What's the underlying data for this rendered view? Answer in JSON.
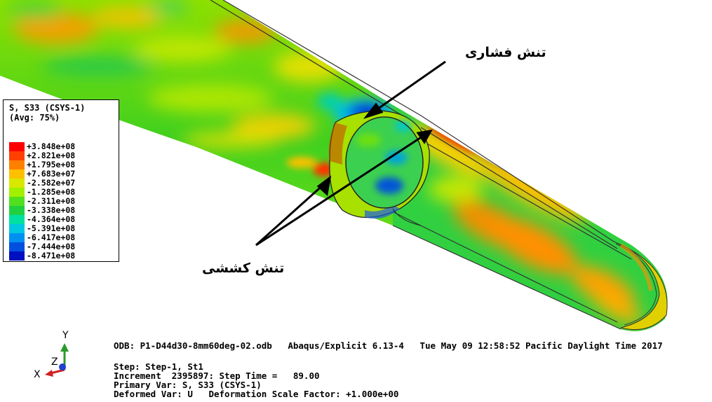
{
  "legend": {
    "title_line1": "S, S33 (CSYS-1)",
    "title_line2": "(Avg: 75%)",
    "items": [
      {
        "value": "+3.848e+08",
        "color": "#ff0000"
      },
      {
        "value": "+2.821e+08",
        "color": "#ff4000"
      },
      {
        "value": "+1.795e+08",
        "color": "#ff8000"
      },
      {
        "value": "+7.683e+07",
        "color": "#ffc000"
      },
      {
        "value": "-2.582e+07",
        "color": "#d8e800"
      },
      {
        "value": "-1.285e+08",
        "color": "#a0f000"
      },
      {
        "value": "-2.311e+08",
        "color": "#50e020"
      },
      {
        "value": "-3.338e+08",
        "color": "#20d040"
      },
      {
        "value": "-4.364e+08",
        "color": "#00e0a0"
      },
      {
        "value": "-5.391e+08",
        "color": "#00c8e0"
      },
      {
        "value": "-6.417e+08",
        "color": "#0090f0"
      },
      {
        "value": "-7.444e+08",
        "color": "#0050e0"
      },
      {
        "value": "-8.471e+08",
        "color": "#0010c0"
      }
    ]
  },
  "annotations": {
    "compressive": "تنش فشاری",
    "tensile": "تنش کششی"
  },
  "triad": {
    "y": "Y",
    "z": "Z",
    "x": "X"
  },
  "info": {
    "odb_line": "ODB: P1-D44d30-8mm60deg-02.odb   Abaqus/Explicit 6.13-4   Tue May 09 12:58:52 Pacific Daylight Time 2017",
    "step_line": "Step: Step-1, St1",
    "increment_line": "Increment  2395897: Step Time =   89.00",
    "primary_line": "Primary Var: S, S33 (CSYS-1)",
    "deformed_line": "Deformed Var: U   Deformation Scale Factor: +1.000e+00"
  }
}
